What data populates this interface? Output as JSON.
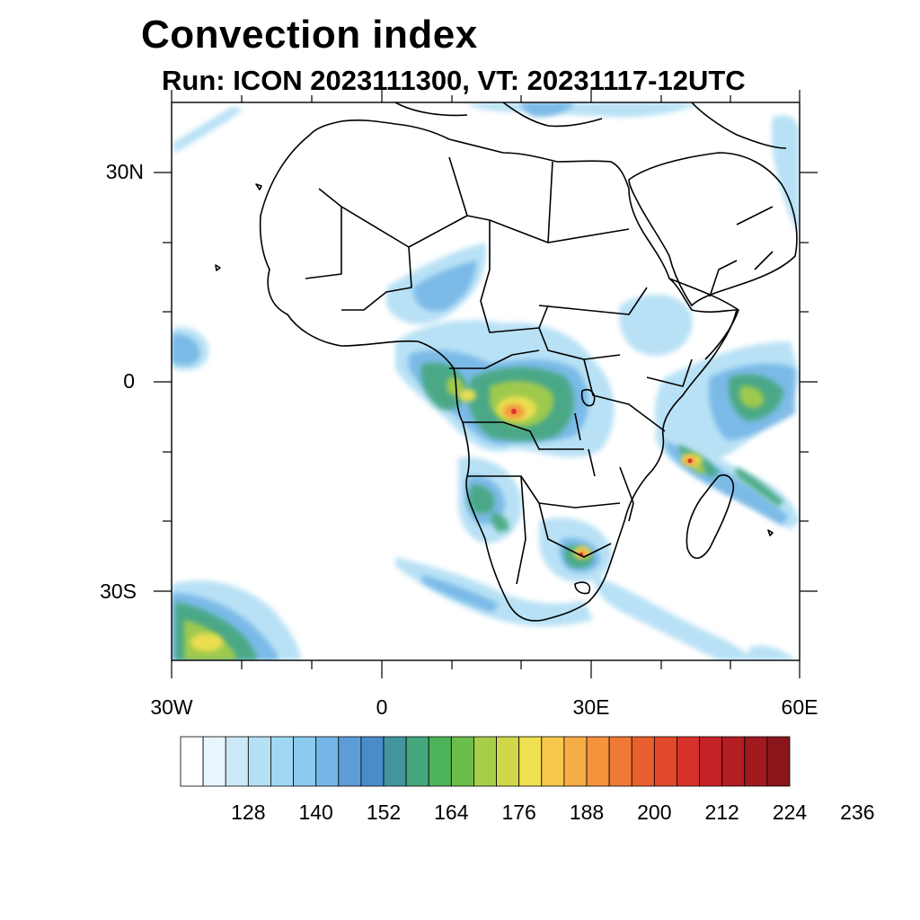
{
  "title": "Convection index",
  "subtitle": "Run: ICON 2023111300,  VT: 20231117-12UTC",
  "lat_labels": [
    "30N",
    "0",
    "30S"
  ],
  "lon_labels": [
    "30W",
    "0",
    "30E",
    "60E"
  ],
  "colorbar": {
    "labels": [
      "128",
      "140",
      "152",
      "164",
      "176",
      "188",
      "200",
      "212",
      "224",
      "236"
    ],
    "colors": [
      "#ffffff",
      "#e8f5fc",
      "#cde9f7",
      "#b5e0f5",
      "#a0d8f3",
      "#8ccbee",
      "#74b6e6",
      "#5d9dd6",
      "#4a8cc9",
      "#43949e",
      "#45a77d",
      "#4db35a",
      "#6cbd4a",
      "#a8cd48",
      "#d0d84a",
      "#f0e050",
      "#f7c84c",
      "#f7ad45",
      "#f5923c",
      "#f07a35",
      "#ea5f2e",
      "#e04a2a",
      "#d8302a",
      "#c52228",
      "#b41d24",
      "#a01a20",
      "#8a161c"
    ]
  }
}
